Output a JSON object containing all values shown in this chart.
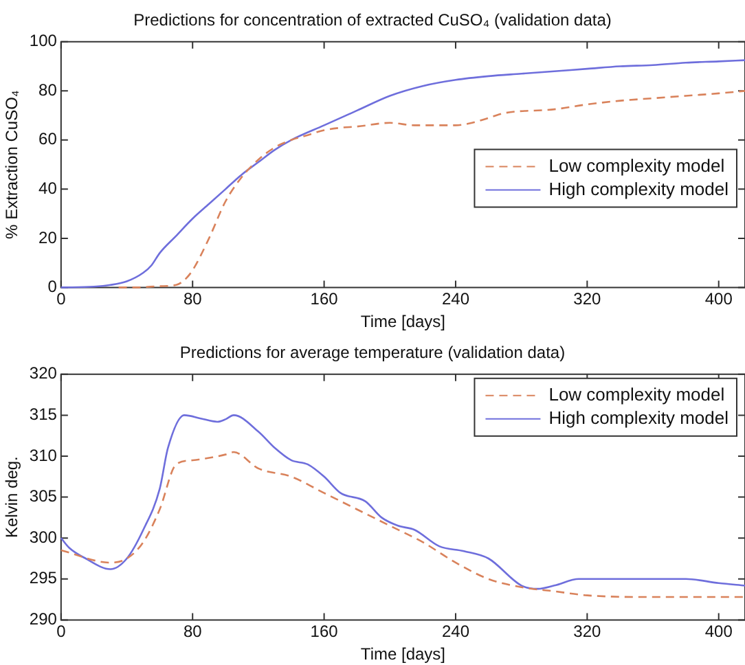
{
  "chart_data": [
    {
      "type": "line",
      "title": "Predictions for concentration of extracted CuSO₄ (validation data)",
      "xlabel": "Time [days]",
      "ylabel": "% Extraction CuSO₄",
      "xlim": [
        0,
        416
      ],
      "xticks": [
        0,
        80,
        160,
        240,
        320,
        400
      ],
      "ylim": [
        0,
        100
      ],
      "yticks": [
        0,
        20,
        40,
        60,
        80,
        100
      ],
      "grid": false,
      "legend": "right",
      "series": [
        {
          "name": "Low complexity model",
          "color": "#d9825b",
          "line_style": "dashed",
          "x": [
            35,
            45,
            60,
            70,
            75,
            80,
            90,
            100,
            110,
            120,
            130,
            140,
            150,
            160,
            170,
            180,
            200,
            215,
            240,
            250,
            260,
            270,
            300,
            320,
            340,
            360,
            380,
            400,
            416
          ],
          "values": [
            0,
            0,
            0.5,
            1,
            3,
            7,
            20,
            35,
            45,
            52,
            57,
            60,
            62,
            64,
            65,
            65.5,
            67,
            66,
            66,
            67,
            69,
            71,
            72.5,
            74.5,
            76,
            77,
            78,
            79,
            80
          ]
        },
        {
          "name": "High complexity model",
          "color": "#6e6edc",
          "line_style": "solid",
          "x": [
            0,
            20,
            30,
            40,
            50,
            55,
            60,
            70,
            80,
            90,
            100,
            110,
            120,
            130,
            140,
            160,
            180,
            200,
            220,
            240,
            260,
            280,
            300,
            320,
            340,
            360,
            380,
            400,
            416
          ],
          "values": [
            0,
            0.3,
            1,
            2.5,
            6,
            9,
            14,
            21,
            28,
            34,
            40,
            46,
            51,
            56,
            60,
            66,
            72,
            78,
            82,
            84.5,
            86,
            87,
            88,
            89,
            90,
            90.5,
            91.5,
            92,
            92.5
          ]
        }
      ]
    },
    {
      "type": "line",
      "title": "Predictions for average temperature (validation data)",
      "xlabel": "Time [days]",
      "ylabel": "Kelvin deg.",
      "xlim": [
        0,
        416
      ],
      "xticks": [
        0,
        80,
        160,
        240,
        320,
        400
      ],
      "ylim": [
        290,
        320
      ],
      "yticks": [
        290,
        295,
        300,
        305,
        310,
        315,
        320
      ],
      "grid": false,
      "legend": "top right",
      "series": [
        {
          "name": "Low complexity model",
          "color": "#d9825b",
          "line_style": "dashed",
          "x": [
            0,
            30,
            40,
            50,
            60,
            70,
            80,
            100,
            105,
            120,
            140,
            160,
            180,
            200,
            220,
            240,
            260,
            280,
            300,
            320,
            360,
            416
          ],
          "values": [
            298.5,
            297,
            297.5,
            299.5,
            303.5,
            309,
            309.5,
            310.2,
            310.5,
            308.5,
            307.5,
            305.5,
            303.5,
            301.5,
            299.5,
            297,
            295,
            294,
            293.5,
            293,
            292.8,
            292.8
          ]
        },
        {
          "name": "High complexity model",
          "color": "#6e6edc",
          "line_style": "solid",
          "x": [
            0,
            5,
            15,
            30,
            40,
            50,
            60,
            65,
            75,
            85,
            95,
            100,
            105,
            120,
            130,
            140,
            150,
            160,
            170,
            185,
            195,
            205,
            215,
            230,
            245,
            260,
            280,
            290,
            300,
            315,
            340,
            380,
            400,
            416
          ],
          "values": [
            300,
            298.8,
            297.5,
            296.2,
            297.5,
            301,
            306,
            311,
            315,
            314.6,
            314.2,
            314.5,
            315,
            313,
            311,
            309.5,
            309,
            307.5,
            305.5,
            304.5,
            302.5,
            301.5,
            301,
            299,
            298.4,
            297.5,
            294.2,
            293.8,
            294.2,
            295,
            295,
            295,
            294.5,
            294.2
          ]
        }
      ]
    }
  ]
}
